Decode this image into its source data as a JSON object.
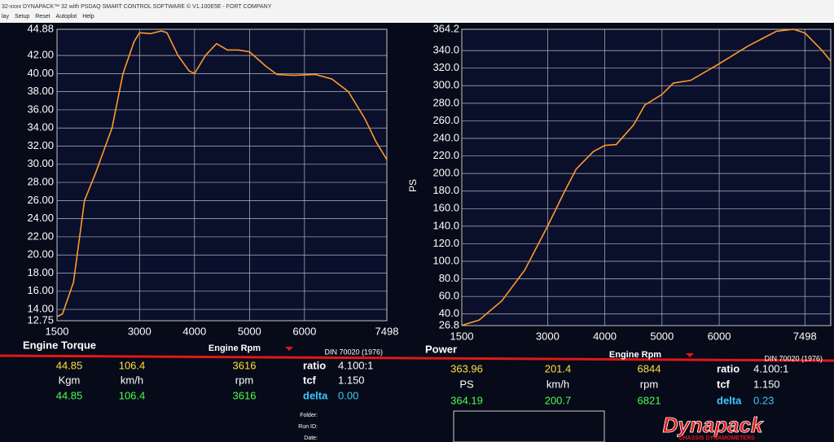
{
  "window": {
    "title": "32-xxxx DYNAPACK™ 32 with PSDAQ SMART CONTROL SOFTWARE © V1.100E5E - FORT COMPANY",
    "menu": [
      "lay",
      "Setup",
      "Reset",
      "Autoplot",
      "Help"
    ]
  },
  "chart_data": [
    {
      "type": "line",
      "title": "Engine Torque",
      "x_label": "Engine Rpm",
      "note": "DIN 70020 (1976)",
      "color": "#ff9a2a",
      "grid": true,
      "x": [
        1500,
        1600,
        1800,
        2000,
        2200,
        2500,
        2700,
        2900,
        3000,
        3200,
        3400,
        3500,
        3700,
        3900,
        4000,
        4200,
        4400,
        4600,
        4800,
        5000,
        5300,
        5500,
        5800,
        6200,
        6500,
        6800,
        7100,
        7300,
        7498
      ],
      "values": [
        13.2,
        13.5,
        17,
        26,
        29,
        34,
        40,
        43.5,
        44.5,
        44.4,
        44.7,
        44.5,
        42,
        40.3,
        40,
        42,
        43.3,
        42.6,
        42.6,
        42.4,
        40.8,
        39.9,
        39.8,
        39.9,
        39.4,
        38,
        35,
        32.5,
        30.5
      ],
      "xlim": [
        1500,
        7498
      ],
      "xticks": [
        1500,
        3000,
        4000,
        5000,
        6000,
        7498
      ],
      "ylim": [
        12.75,
        44.88
      ],
      "yticks": [
        12.75,
        {
          "value": 14,
          "label": "14.00"
        },
        {
          "value": 16,
          "label": "16.00"
        },
        {
          "value": 18,
          "label": "18.00"
        },
        {
          "value": 20,
          "label": "20.00"
        },
        {
          "value": 22,
          "label": "22.00"
        },
        {
          "value": 24,
          "label": "24.00"
        },
        {
          "value": 26,
          "label": "26.00"
        },
        {
          "value": 28,
          "label": "28.00"
        },
        {
          "value": 30,
          "label": "30.00"
        },
        {
          "value": 32,
          "label": "32.00"
        },
        {
          "value": 34,
          "label": "34.00"
        },
        {
          "value": 36,
          "label": "36.00"
        },
        {
          "value": 38,
          "label": "38.00"
        },
        {
          "value": 40,
          "label": "40.00"
        },
        {
          "value": 42,
          "label": "42.00"
        },
        44.88
      ]
    },
    {
      "type": "line",
      "title": "Power",
      "x_label": "Engine Rpm",
      "y_label": "PS",
      "note": "DIN 70020 (1976)",
      "color": "#ff9a2a",
      "grid": true,
      "x": [
        1500,
        1800,
        2200,
        2600,
        3000,
        3300,
        3500,
        3800,
        4000,
        4200,
        4500,
        4700,
        5000,
        5200,
        5500,
        6000,
        6500,
        7000,
        7300,
        7500,
        7800,
        7950
      ],
      "values": [
        27,
        33,
        55,
        90,
        140,
        180,
        205,
        225,
        232,
        233,
        255,
        278,
        290,
        303,
        306,
        325,
        345,
        362,
        364.2,
        360,
        340,
        328
      ],
      "xlim": [
        1500,
        7950
      ],
      "xticks": [
        1500,
        3000,
        4000,
        5000,
        6000,
        7498
      ],
      "ylim": [
        26.8,
        364.2
      ],
      "yticks": [
        26.8,
        {
          "value": 40,
          "label": "40.0"
        },
        {
          "value": 60,
          "label": "60.0"
        },
        {
          "value": 80,
          "label": "80.0"
        },
        {
          "value": 100,
          "label": "100.0"
        },
        {
          "value": 120,
          "label": "120.0"
        },
        {
          "value": 140,
          "label": "140.0"
        },
        {
          "value": 160,
          "label": "160.0"
        },
        {
          "value": 180,
          "label": "180.0"
        },
        {
          "value": 200,
          "label": "200.0"
        },
        {
          "value": 220,
          "label": "220.0"
        },
        {
          "value": 240,
          "label": "240.0"
        },
        {
          "value": 260,
          "label": "260.0"
        },
        {
          "value": 280,
          "label": "280.0"
        },
        {
          "value": 300,
          "label": "300.0"
        },
        {
          "value": 320,
          "label": "320.0"
        },
        {
          "value": 340,
          "label": "340.0"
        },
        364.2
      ]
    }
  ],
  "readouts": [
    {
      "rows": [
        [
          "44.85",
          "106.4",
          "3616",
          "ratio",
          "4.100:1"
        ],
        [
          "Kgm",
          "km/h",
          "rpm",
          "tcf",
          "1.150"
        ],
        [
          "44.85",
          "106.4",
          "3616",
          "delta",
          "0.00"
        ]
      ]
    },
    {
      "rows": [
        [
          "363.96",
          "201.4",
          "6844",
          "ratio",
          "4.100:1"
        ],
        [
          "PS",
          "km/h",
          "rpm",
          "tcf",
          "1.150"
        ],
        [
          "364.19",
          "200.7",
          "6821",
          "delta",
          "0.23"
        ]
      ]
    }
  ],
  "run_info": [
    "Folder:",
    "Run ID:",
    "Date:"
  ],
  "logo": {
    "name": "Dynapack",
    "sub": "CHASSIS DYNAMOMETERS"
  }
}
